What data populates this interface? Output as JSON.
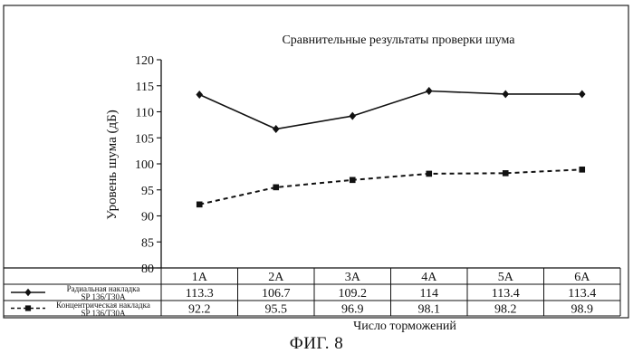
{
  "caption": "ФИГ. 8",
  "chart_data": {
    "type": "line",
    "title": "Сравнительные результаты проверки шума",
    "xlabel": "Число торможений",
    "ylabel": "Уровень шума (дБ)",
    "ylim": [
      80,
      120
    ],
    "yticks": [
      80,
      85,
      90,
      95,
      100,
      105,
      110,
      115,
      120
    ],
    "grid": false,
    "legend": "table-left",
    "categories": [
      "1A",
      "2A",
      "3A",
      "4A",
      "5A",
      "6A"
    ],
    "series": [
      {
        "name_line1": "Радиальная накладка",
        "name_line2": "SP 136/T30A",
        "values": [
          113.3,
          106.7,
          109.2,
          114,
          113.4,
          113.4
        ],
        "value_labels": [
          "113.3",
          "106.7",
          "109.2",
          "114",
          "113.4",
          "113.4"
        ],
        "line": "solid",
        "marker": "diamond",
        "color": "#111111"
      },
      {
        "name_line1": "Концентрическая накладка",
        "name_line2": "SP 136/T30A",
        "values": [
          92.2,
          95.5,
          96.9,
          98.1,
          98.2,
          98.9
        ],
        "value_labels": [
          "92.2",
          "95.5",
          "96.9",
          "98.1",
          "98.2",
          "98.9"
        ],
        "line": "dashed",
        "marker": "square",
        "color": "#111111"
      }
    ]
  }
}
